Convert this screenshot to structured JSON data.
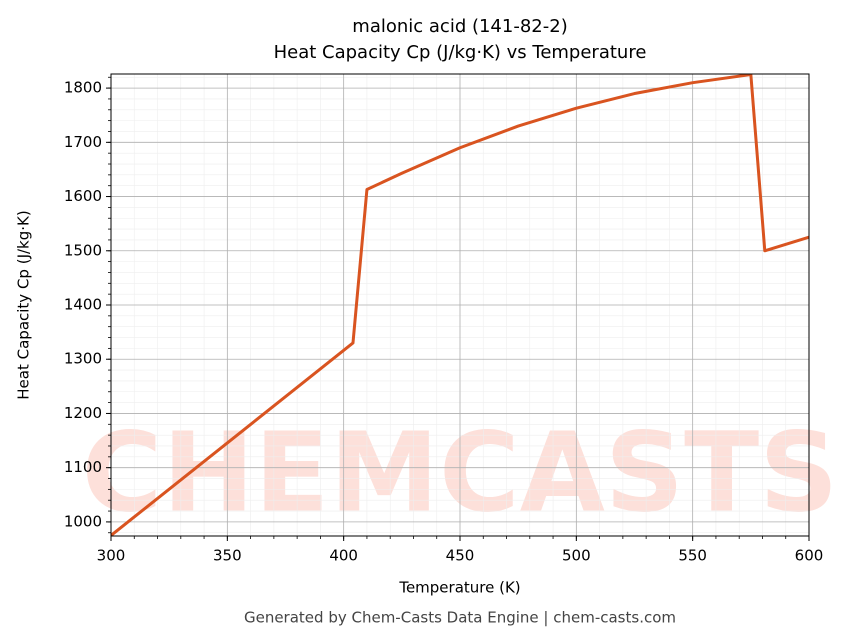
{
  "chart_data": {
    "type": "line",
    "title": "malonic acid (141-82-2)",
    "subtitle": "Heat Capacity Cp (J/kg·K) vs Temperature",
    "x_label": "Temperature (K)",
    "y_label": "Heat Capacity Cp (J/kg·K)",
    "footer": "Generated by Chem-Casts Data Engine | chem-casts.com",
    "watermark": "CHEMCASTS",
    "x": [
      300,
      404,
      410,
      425,
      450,
      475,
      500,
      525,
      550,
      575,
      581,
      600
    ],
    "series": [
      {
        "name": "Cp",
        "color": "#d95420",
        "values": [
          975,
          1330,
          1613,
          1643,
          1690,
          1730,
          1763,
          1790,
          1810,
          1825,
          1500,
          1525
        ]
      }
    ],
    "xlim": [
      300,
      600
    ],
    "ylim": [
      974,
      1826
    ],
    "xticks": [
      300,
      350,
      400,
      450,
      500,
      550,
      600
    ],
    "yticks": [
      1000,
      1100,
      1200,
      1300,
      1400,
      1500,
      1600,
      1700,
      1800
    ],
    "grid": true,
    "minor_divisions": 5
  }
}
